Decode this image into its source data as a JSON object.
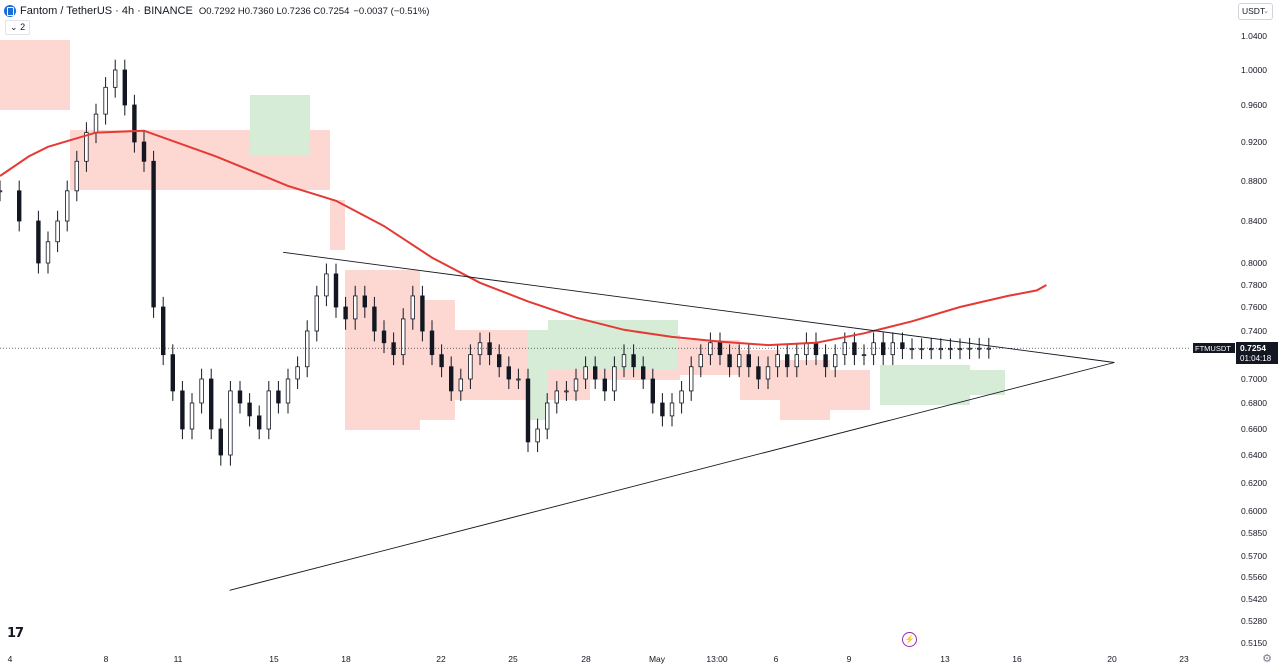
{
  "header": {
    "title": "Fantom / TetherUS · 4h · BINANCE",
    "ohlc": "O0.7292 H0.7360 L0.7236 C0.7254",
    "change": "−0.0037 (−0.51%)",
    "indicator_badge": "2"
  },
  "currency_select": "USDT",
  "price_label": {
    "symbol": "FTMUSDT",
    "price": "0.7254",
    "countdown": "01:04:18"
  },
  "colors": {
    "up": "#131722",
    "down": "#131722",
    "ma": "#e53935",
    "cloud_bear": "#fdd8d2",
    "cloud_bull": "#d7ecd6",
    "trendline": "#131722",
    "price_tag": "#131722"
  },
  "chart_data": {
    "type": "line",
    "symbol": "FTMUSDT",
    "timeframe": "4h",
    "y_scale": "log",
    "ylim": [
      0.515,
      1.05
    ],
    "y_ticks": [
      "1.0400",
      "1.0000",
      "0.9600",
      "0.9200",
      "0.8800",
      "0.8400",
      "0.8000",
      "0.7800",
      "0.7600",
      "0.7400",
      "0.7000",
      "0.6800",
      "0.6600",
      "0.6400",
      "0.6200",
      "0.6000",
      "0.5850",
      "0.5700",
      "0.5560",
      "0.5420",
      "0.5280",
      "0.5150"
    ],
    "x_ticks": [
      "4",
      "8",
      "11",
      "15",
      "18",
      "22",
      "25",
      "28",
      "May",
      "13:00",
      "6",
      "9",
      "13",
      "16",
      "20",
      "23"
    ],
    "ma_line": {
      "x": [
        0,
        6,
        10,
        20,
        30,
        45,
        60,
        70,
        80,
        90,
        100,
        110,
        120,
        130,
        140,
        150,
        160,
        170,
        180,
        190,
        200,
        210,
        216,
        218
      ],
      "y": [
        0.885,
        0.905,
        0.915,
        0.93,
        0.932,
        0.905,
        0.875,
        0.86,
        0.835,
        0.805,
        0.782,
        0.765,
        0.751,
        0.741,
        0.735,
        0.731,
        0.728,
        0.73,
        0.738,
        0.748,
        0.76,
        0.77,
        0.775,
        0.78
      ]
    },
    "price_series": {
      "x": [
        0,
        4,
        8,
        10,
        12,
        14,
        16,
        18,
        20,
        22,
        24,
        26,
        28,
        30,
        32,
        34,
        36,
        38,
        40,
        42,
        44,
        46,
        48,
        50,
        52,
        54,
        56,
        58,
        60,
        62,
        64,
        66,
        68,
        70,
        72,
        74,
        76,
        78,
        80,
        82,
        84,
        86,
        88,
        90,
        92,
        94,
        96,
        98,
        100,
        102,
        104,
        106,
        108,
        110,
        112,
        114,
        116,
        118,
        120,
        122,
        124,
        126,
        128,
        130,
        132,
        134,
        136,
        138,
        140,
        142,
        144,
        146,
        148,
        150,
        152,
        154,
        156,
        158,
        160,
        162,
        164,
        166,
        168,
        170,
        172,
        174,
        176,
        178,
        180,
        182,
        184,
        186,
        188,
        190,
        192,
        194,
        196,
        198,
        200,
        202,
        204,
        206
      ],
      "y": [
        0.87,
        0.84,
        0.8,
        0.82,
        0.84,
        0.87,
        0.9,
        0.93,
        0.95,
        0.98,
        1.0,
        0.96,
        0.92,
        0.9,
        0.76,
        0.72,
        0.69,
        0.66,
        0.68,
        0.7,
        0.66,
        0.64,
        0.69,
        0.68,
        0.67,
        0.66,
        0.69,
        0.68,
        0.7,
        0.71,
        0.74,
        0.77,
        0.79,
        0.76,
        0.75,
        0.77,
        0.76,
        0.74,
        0.73,
        0.72,
        0.75,
        0.77,
        0.74,
        0.72,
        0.71,
        0.69,
        0.7,
        0.72,
        0.73,
        0.72,
        0.71,
        0.7,
        0.7,
        0.65,
        0.66,
        0.68,
        0.69,
        0.69,
        0.7,
        0.71,
        0.7,
        0.69,
        0.71,
        0.72,
        0.71,
        0.7,
        0.68,
        0.67,
        0.68,
        0.69,
        0.71,
        0.72,
        0.73,
        0.72,
        0.71,
        0.72,
        0.71,
        0.7,
        0.71,
        0.72,
        0.71,
        0.72,
        0.73,
        0.72,
        0.71,
        0.72,
        0.73,
        0.72,
        0.72,
        0.73,
        0.72,
        0.73,
        0.725,
        0.725,
        0.725,
        0.725,
        0.725,
        0.725,
        0.725,
        0.7254,
        0.7254,
        0.7254
      ]
    },
    "triangle": {
      "upper": {
        "from": [
          0.81,
          59
        ],
        "to": [
          0.7135,
          253
        ]
      },
      "lower": {
        "from": [
          0.5475,
          52
        ],
        "to": [
          0.7135,
          253
        ]
      }
    },
    "last_price": 0.7254
  }
}
